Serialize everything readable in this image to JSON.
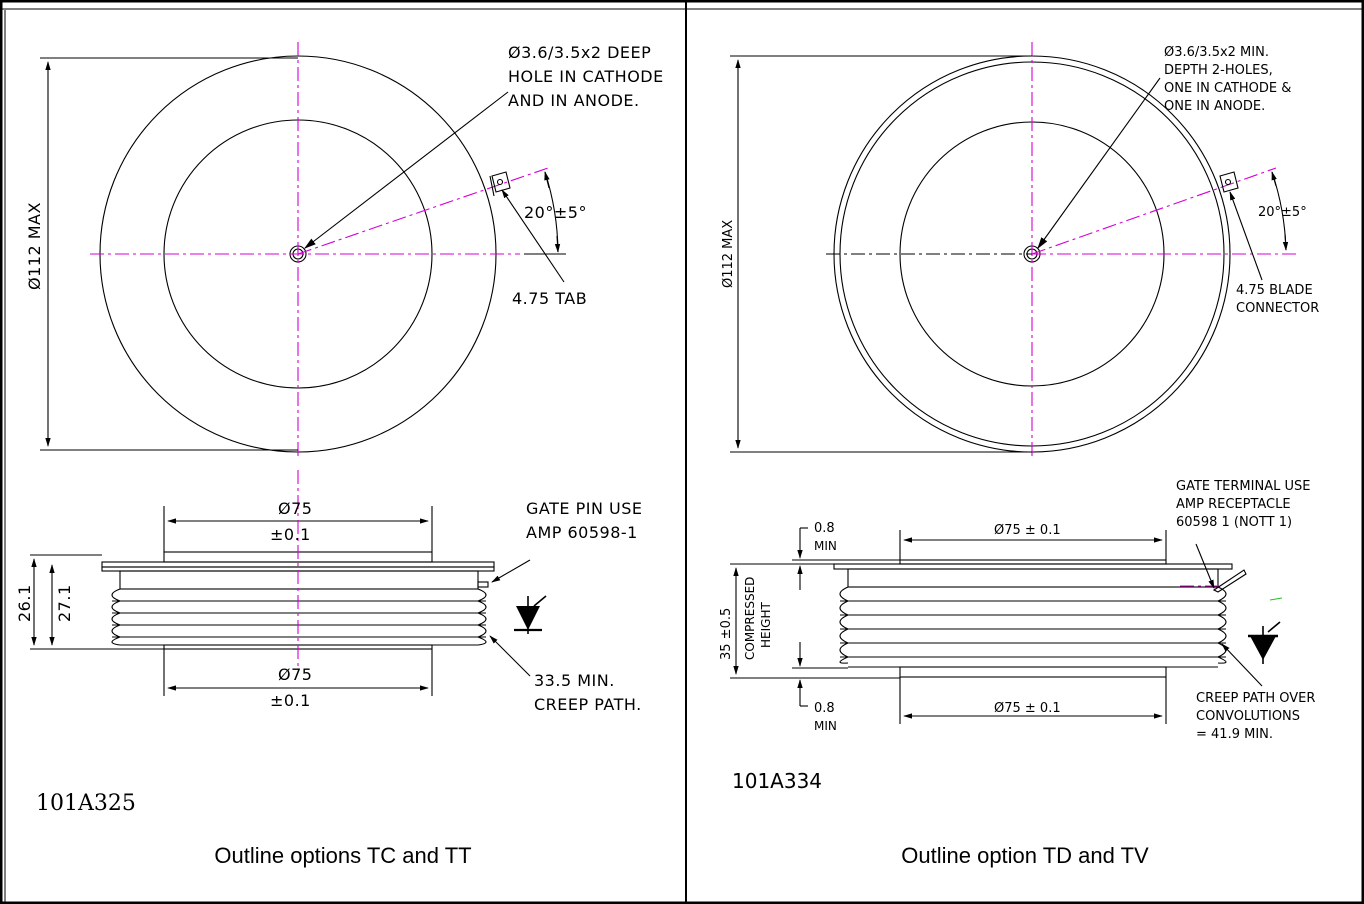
{
  "left_panel": {
    "hole_note": [
      "Ø3.6/3.5x2 DEEP",
      "HOLE IN CATHODE",
      "AND IN ANODE."
    ],
    "diameter_label": "Ø112 MAX",
    "angle_label": "20°±5°",
    "tab_label": "4.75 TAB",
    "top_dim": [
      "Ø75",
      "±0.1"
    ],
    "bottom_dim": [
      "Ø75",
      "±0.1"
    ],
    "gate_note": [
      "GATE PIN USE",
      "AMP 60598-1"
    ],
    "height_min": "26.1",
    "height_max": "27.1",
    "creep_note": [
      "33.5 MIN.",
      "CREEP PATH."
    ],
    "drawing_code": "101A325",
    "caption": "Outline options TC and TT"
  },
  "right_panel": {
    "hole_note": [
      "Ø3.6/3.5x2 MIN.",
      "DEPTH 2-HOLES,",
      "ONE IN CATHODE &",
      "ONE IN ANODE."
    ],
    "diameter_label": "Ø112 MAX",
    "angle_label": "20°±5°",
    "connector_note": [
      "4.75 BLADE",
      "CONNECTOR"
    ],
    "gate_note": [
      "GATE TERMINAL USE",
      "AMP RECEPTACLE",
      "60598 1 (NOTT 1)"
    ],
    "top_dim": "Ø75 ± 0.1",
    "bottom_dim": "Ø75 ± 0.1",
    "top_flange": [
      "0.8",
      "MIN"
    ],
    "bottom_flange": [
      "0.8",
      "MIN"
    ],
    "height_note": [
      "35 ±0.5",
      "COMPRESSED",
      "HEIGHT"
    ],
    "creep_note": [
      "CREEP PATH OVER",
      "CONVOLUTIONS",
      "= 41.9 MIN."
    ],
    "drawing_code": "101A334",
    "caption": "Outline option TD and TV"
  }
}
